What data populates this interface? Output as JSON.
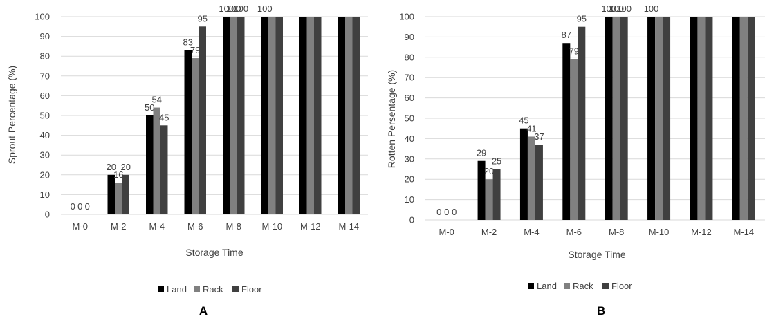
{
  "chart_data": [
    {
      "type": "bar",
      "panel_label": "A",
      "categories": [
        "M-0",
        "M-2",
        "M-4",
        "M-6",
        "M-8",
        "M-10",
        "M-12",
        "M-14"
      ],
      "series": [
        {
          "name": "Land",
          "color": "#000000",
          "values": [
            0,
            20,
            50,
            83,
            100,
            100,
            100,
            100
          ]
        },
        {
          "name": "Rack",
          "color": "#808080",
          "values": [
            0,
            16,
            54,
            79,
            100,
            100,
            100,
            100
          ]
        },
        {
          "name": "Floor",
          "color": "#404040",
          "values": [
            0,
            20,
            45,
            95,
            100,
            100,
            100,
            100
          ]
        }
      ],
      "data_labels": [
        "0",
        "0",
        "0",
        "20",
        "16",
        "20",
        "50",
        "54",
        "45",
        "83",
        "79",
        "95",
        "100",
        "100",
        "100",
        "100"
      ],
      "xlabel": "Storage Time",
      "ylabel": "Sprout Percentage (%)",
      "ylim": [
        0,
        100
      ],
      "yticks": [
        "0",
        "10",
        "20",
        "30",
        "40",
        "50",
        "60",
        "70",
        "80",
        "90",
        "100"
      ],
      "grid": true,
      "legend": "bottom"
    },
    {
      "type": "bar",
      "panel_label": "B",
      "categories": [
        "M-0",
        "M-2",
        "M-4",
        "M-6",
        "M-8",
        "M-10",
        "M-12",
        "M-14"
      ],
      "series": [
        {
          "name": "Land",
          "color": "#000000",
          "values": [
            0,
            29,
            45,
            87,
            100,
            100,
            100,
            100
          ]
        },
        {
          "name": "Rack",
          "color": "#808080",
          "values": [
            0,
            20,
            41,
            79,
            100,
            100,
            100,
            100
          ]
        },
        {
          "name": "Floor",
          "color": "#404040",
          "values": [
            0,
            25,
            37,
            95,
            100,
            100,
            100,
            100
          ]
        }
      ],
      "data_labels": [
        "0",
        "0",
        "0",
        "29",
        "20",
        "25",
        "45",
        "41",
        "37",
        "87",
        "79",
        "95",
        "100",
        "100",
        "100",
        "100"
      ],
      "xlabel": "Storage Time",
      "ylabel": "Rotten Persentage (%)",
      "ylim": [
        0,
        100
      ],
      "yticks": [
        "0",
        "10",
        "20",
        "30",
        "40",
        "50",
        "60",
        "70",
        "80",
        "90",
        "100"
      ],
      "grid": true,
      "legend": "bottom"
    }
  ]
}
